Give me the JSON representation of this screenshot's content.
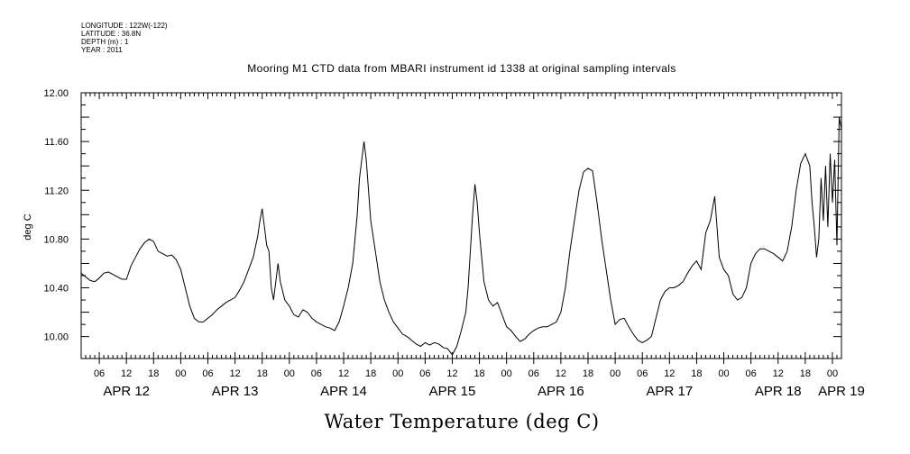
{
  "metadata": {
    "lines": [
      "LONGITUDE : 122W(-122)",
      "LATITUDE : 36.8N",
      "DEPTH (m) : 1",
      "YEAR : 2011"
    ]
  },
  "chart_data": {
    "type": "line",
    "title": "Mooring M1 CTD data from MBARI instrument id 1338 at original sampling intervals",
    "xlabel": "Water Temperature (deg C)",
    "ylabel": "deg C",
    "ylim": [
      9.82,
      12.0
    ],
    "yticks": [
      10.0,
      10.4,
      10.8,
      11.2,
      11.6,
      12.0
    ],
    "ytick_labels": [
      "10.00",
      "10.40",
      "10.80",
      "11.20",
      "11.60",
      "12.00"
    ],
    "xlim_hours_from_apr12_00": [
      2,
      170
    ],
    "xticks_hours": [
      6,
      12,
      18,
      24,
      30,
      36,
      42,
      48,
      54,
      60,
      66,
      72,
      78,
      84,
      90,
      96,
      102,
      108,
      114,
      120,
      126,
      132,
      138,
      144,
      150,
      156,
      162,
      168
    ],
    "xtick_labels": [
      "06",
      "12",
      "18",
      "00",
      "06",
      "12",
      "18",
      "00",
      "06",
      "12",
      "18",
      "00",
      "06",
      "12",
      "18",
      "00",
      "06",
      "12",
      "18",
      "00",
      "06",
      "12",
      "18",
      "00",
      "06",
      "12",
      "18",
      "00"
    ],
    "day_labels": [
      {
        "text": "APR 12",
        "hour": 12
      },
      {
        "text": "APR 13",
        "hour": 36
      },
      {
        "text": "APR 14",
        "hour": 60
      },
      {
        "text": "APR 15",
        "hour": 84
      },
      {
        "text": "APR 16",
        "hour": 108
      },
      {
        "text": "APR 17",
        "hour": 132
      },
      {
        "text": "APR 18",
        "hour": 156
      },
      {
        "text": "APR 19",
        "hour": 170
      }
    ],
    "series": [
      {
        "x": [
          2,
          3,
          4,
          5,
          6,
          7,
          8,
          9,
          10,
          11,
          12,
          13,
          14,
          15,
          16,
          17,
          18,
          19,
          20,
          21,
          22,
          23,
          24,
          25,
          26,
          27,
          28,
          29,
          30,
          31,
          32,
          33,
          34,
          35,
          36,
          37,
          38,
          39,
          40,
          41,
          41.5,
          42,
          42.5,
          43,
          43.5,
          44,
          44.5,
          45,
          45.5,
          46,
          47,
          48,
          49,
          50,
          51,
          52,
          53,
          54,
          55,
          56,
          57,
          58,
          59,
          60,
          61,
          62,
          63,
          63.5,
          64,
          64.5,
          65,
          65.5,
          66,
          67,
          68,
          69,
          70,
          71,
          72,
          73,
          74,
          75,
          76,
          77,
          78,
          79,
          80,
          81,
          82,
          83,
          84,
          85,
          86,
          87,
          87.5,
          88,
          88.5,
          89,
          89.5,
          90,
          90.5,
          91,
          92,
          93,
          94,
          95,
          96,
          97,
          98,
          99,
          100,
          101,
          102,
          103,
          104,
          105,
          106,
          107,
          108,
          109,
          110,
          111,
          112,
          113,
          114,
          115,
          116,
          117,
          118,
          119,
          120,
          121,
          122,
          123,
          124,
          125,
          126,
          127,
          128,
          129,
          130,
          131,
          132,
          133,
          134,
          135,
          136,
          137,
          138,
          139,
          140,
          141,
          141.5,
          142,
          142.5,
          143,
          144,
          145,
          146,
          147,
          148,
          149,
          150,
          151,
          152,
          153,
          154,
          155,
          156,
          157,
          158,
          159,
          160,
          161,
          162,
          163,
          163.5,
          164,
          164.5,
          165,
          165.5,
          166,
          166.5,
          167,
          167.5,
          168,
          168.5,
          169,
          169.5,
          170
        ],
        "y": [
          10.52,
          10.49,
          10.46,
          10.45,
          10.48,
          10.52,
          10.53,
          10.51,
          10.49,
          10.47,
          10.47,
          10.58,
          10.65,
          10.72,
          10.77,
          10.8,
          10.78,
          10.7,
          10.68,
          10.66,
          10.67,
          10.63,
          10.55,
          10.4,
          10.25,
          10.15,
          10.12,
          10.12,
          10.15,
          10.18,
          10.22,
          10.25,
          10.28,
          10.3,
          10.32,
          10.38,
          10.45,
          10.55,
          10.65,
          10.82,
          10.95,
          11.05,
          10.9,
          10.75,
          10.7,
          10.4,
          10.3,
          10.45,
          10.6,
          10.45,
          10.3,
          10.25,
          10.18,
          10.16,
          10.22,
          10.2,
          10.15,
          10.12,
          10.1,
          10.08,
          10.07,
          10.05,
          10.12,
          10.25,
          10.4,
          10.6,
          11.0,
          11.3,
          11.45,
          11.6,
          11.45,
          11.2,
          10.95,
          10.7,
          10.45,
          10.3,
          10.2,
          10.12,
          10.07,
          10.02,
          10.0,
          9.97,
          9.94,
          9.92,
          9.95,
          9.93,
          9.95,
          9.94,
          9.91,
          9.9,
          9.85,
          9.92,
          10.05,
          10.2,
          10.4,
          10.7,
          11.0,
          11.25,
          11.1,
          10.85,
          10.65,
          10.45,
          10.3,
          10.25,
          10.28,
          10.18,
          10.08,
          10.05,
          10.0,
          9.96,
          9.98,
          10.02,
          10.05,
          10.07,
          10.08,
          10.08,
          10.1,
          10.12,
          10.2,
          10.4,
          10.7,
          10.95,
          11.2,
          11.35,
          11.38,
          11.36,
          11.1,
          10.8,
          10.55,
          10.3,
          10.1,
          10.14,
          10.15,
          10.08,
          10.02,
          9.97,
          9.95,
          9.97,
          10.0,
          10.15,
          10.3,
          10.37,
          10.4,
          10.4,
          10.42,
          10.45,
          10.52,
          10.58,
          10.62,
          10.55,
          10.85,
          10.95,
          11.05,
          11.15,
          10.9,
          10.65,
          10.55,
          10.5,
          10.35,
          10.3,
          10.32,
          10.4,
          10.6,
          10.68,
          10.72,
          10.72,
          10.7,
          10.68,
          10.65,
          10.62,
          10.7,
          10.9,
          11.2,
          11.42,
          11.5,
          11.4,
          11.1,
          10.9,
          10.65,
          10.8,
          11.3,
          10.95,
          11.4,
          10.9,
          11.5,
          11.1,
          11.45,
          10.75,
          11.8,
          11.7
        ]
      }
    ]
  }
}
